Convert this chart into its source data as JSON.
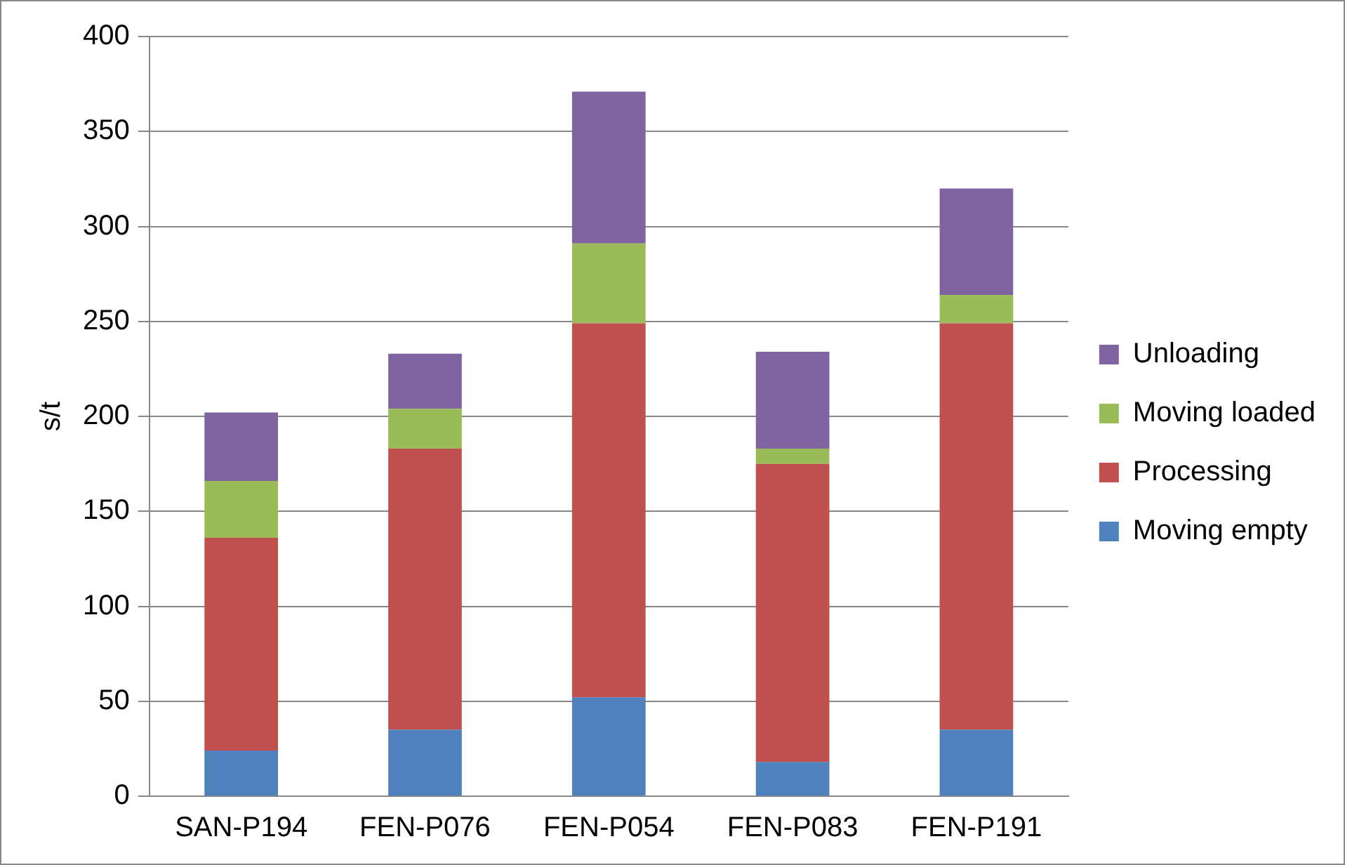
{
  "chart_data": {
    "type": "bar",
    "stacked": true,
    "ylabel": "s/t",
    "categories": [
      "SAN-P194",
      "FEN-P076",
      "FEN-P054",
      "FEN-P083",
      "FEN-P191"
    ],
    "series": [
      {
        "name": "Moving empty",
        "color": "#4f81bd",
        "values": [
          24,
          35,
          52,
          18,
          35
        ]
      },
      {
        "name": "Processing",
        "color": "#c0504d",
        "values": [
          112,
          148,
          197,
          157,
          214
        ]
      },
      {
        "name": "Moving loaded",
        "color": "#9bbb59",
        "values": [
          30,
          21,
          42,
          8,
          15
        ]
      },
      {
        "name": "Unloading",
        "color": "#8064a2",
        "values": [
          36,
          29,
          80,
          51,
          56
        ]
      }
    ],
    "ylim": [
      0,
      400
    ],
    "yticks": [
      0,
      50,
      100,
      150,
      200,
      250,
      300,
      350,
      400
    ],
    "grid": "y",
    "legend": "right"
  }
}
